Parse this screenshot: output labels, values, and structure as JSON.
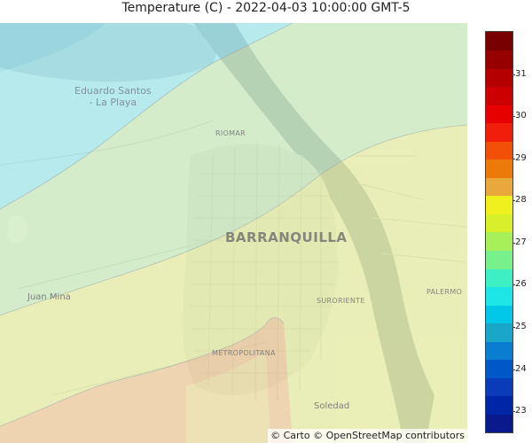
{
  "title": "Temperature (C) - 2022-04-03 10:00:00 GMT-5",
  "map": {
    "labels": {
      "city": "BARRANQUILLA",
      "eduardo_line1": "Eduardo Santos",
      "eduardo_line2": "- La Playa",
      "riomar": "RIOMAR",
      "juan_mina": "Juan Mina",
      "suroriente": "SURORIENTE",
      "palermo": "PALERMO",
      "metropolitana": "METROPOLITANA",
      "soledad": "Soledad"
    },
    "attribution": "© Carto © OpenStreetMap contributors"
  },
  "colorbar": {
    "ticks": [
      "31",
      "30",
      "29",
      "28",
      "27",
      "26",
      "25",
      "24",
      "23"
    ],
    "tick_values": [
      31,
      30,
      29,
      28,
      27,
      26,
      25,
      24,
      23
    ],
    "range": [
      22.5,
      32.0
    ],
    "colors": [
      "#0a1a8c",
      "#0026a8",
      "#0a3cba",
      "#0058c8",
      "#0a7dd0",
      "#1aa6c8",
      "#00c8e6",
      "#1ee6e6",
      "#3cf0c4",
      "#78f08c",
      "#a8f05a",
      "#d8f02a",
      "#f0f01e",
      "#e8a83c",
      "#ec7a0a",
      "#f05008",
      "#f01e0a",
      "#e60000",
      "#cc0000",
      "#b40000",
      "#960000",
      "#780000"
    ]
  }
}
